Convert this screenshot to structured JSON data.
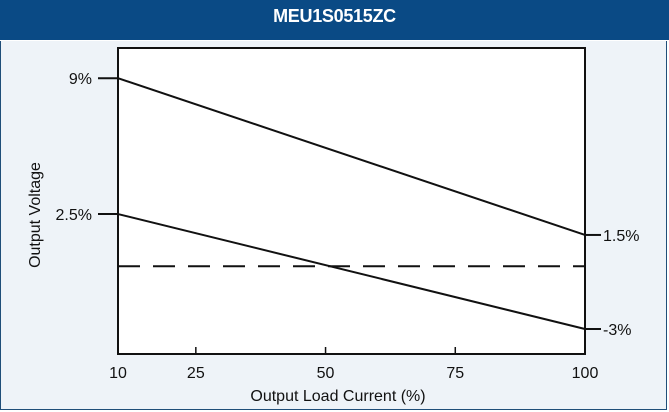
{
  "chart_data": {
    "type": "line",
    "title": "MEU1S0515ZC",
    "xlabel": "Output Load Current (%)",
    "ylabel": "Output Voltage",
    "x_ticks": [
      "10",
      "25",
      "50",
      "75",
      "100"
    ],
    "xlim": [
      10,
      100
    ],
    "ylim": [
      -10,
      10
    ],
    "grid": false,
    "series": [
      {
        "x": [
          10,
          100
        ],
        "y": [
          9,
          1.5
        ],
        "style": "solid",
        "left_label": "9%",
        "right_label": "1.5%"
      },
      {
        "x": [
          10,
          100
        ],
        "y": [
          2.5,
          -3
        ],
        "style": "solid",
        "left_label": "2.5%",
        "right_label": "-3%"
      },
      {
        "x": [
          10,
          100
        ],
        "y": [
          0,
          0
        ],
        "style": "dashed"
      }
    ],
    "colors": {
      "header": "#0a4a85",
      "background": "#eef3f8",
      "plot": "#ffffff",
      "line": "#111111"
    }
  }
}
